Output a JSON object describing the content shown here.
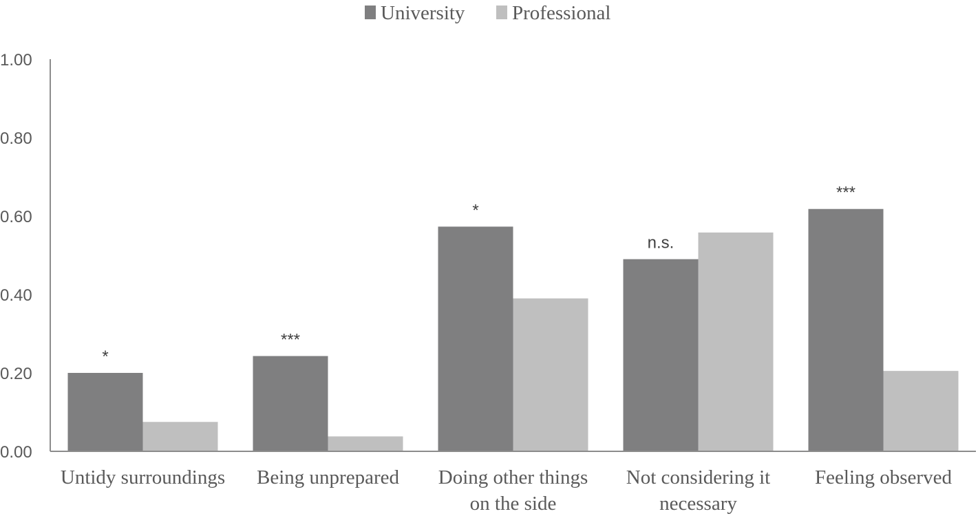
{
  "chart_data": {
    "type": "bar",
    "title": "",
    "xlabel": "",
    "ylabel": "",
    "ylim": [
      0,
      1
    ],
    "yticks": [
      "0.00",
      "0.20",
      "0.40",
      "0.60",
      "0.80",
      "1.00"
    ],
    "grid": false,
    "legend_position": "top-center",
    "categories": [
      [
        "Untidy surroundings"
      ],
      [
        "Being unprepared"
      ],
      [
        "Doing other things",
        "on the side"
      ],
      [
        "Not considering it",
        "necessary"
      ],
      [
        "Feeling observed"
      ]
    ],
    "series": [
      {
        "name": "University",
        "color": "#7f7f80",
        "values": [
          0.2,
          0.243,
          0.573,
          0.49,
          0.618
        ]
      },
      {
        "name": "Professional",
        "color": "#bfbfbf",
        "values": [
          0.075,
          0.038,
          0.39,
          0.558,
          0.205
        ]
      }
    ],
    "annotations": [
      "*",
      "***",
      "*",
      "n.s.",
      "***"
    ]
  }
}
